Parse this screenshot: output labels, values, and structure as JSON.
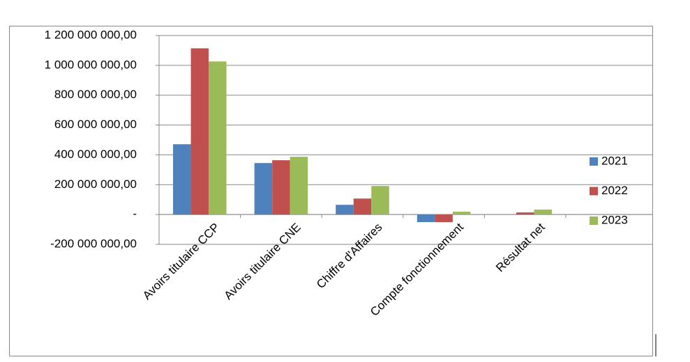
{
  "chart_data": {
    "type": "bar",
    "categories": [
      "Avoirs titulaire CCP",
      "Avoirs titulaire CNE",
      "Chiffre d'Affaires",
      "Compte fonctionnement",
      "Résultat net"
    ],
    "series": [
      {
        "name": "2021",
        "color": "#4f81bd",
        "values": [
          471000000,
          345000000,
          65000000,
          -51000000,
          0
        ]
      },
      {
        "name": "2022",
        "color": "#c0504d",
        "values": [
          1114000000,
          364000000,
          107000000,
          -51000000,
          14000000
        ]
      },
      {
        "name": "2023",
        "color": "#9bbb59",
        "values": [
          1026000000,
          387000000,
          191000000,
          19000000,
          33000000
        ]
      }
    ],
    "ylim": [
      -200000000,
      1200000000
    ],
    "yticks": [
      {
        "value": -200000000,
        "label": "-200 000 000,00"
      },
      {
        "value": 0,
        "label": "-"
      },
      {
        "value": 200000000,
        "label": "200 000 000,00"
      },
      {
        "value": 400000000,
        "label": "400 000 000,00"
      },
      {
        "value": 600000000,
        "label": "600 000 000,00"
      },
      {
        "value": 800000000,
        "label": "800 000 000,00"
      },
      {
        "value": 1000000000,
        "label": "1 000 000 000,00"
      },
      {
        "value": 1200000000,
        "label": "1 200 000 000,00"
      }
    ],
    "grid": true,
    "legend": "right"
  }
}
